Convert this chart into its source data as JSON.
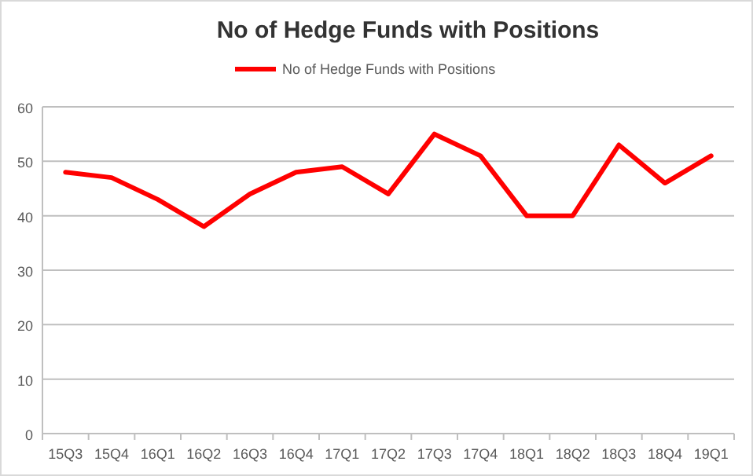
{
  "chart_data": {
    "type": "line",
    "title": "No of Hedge Funds with Positions",
    "categories": [
      "15Q3",
      "15Q4",
      "16Q1",
      "16Q2",
      "16Q3",
      "16Q4",
      "17Q1",
      "17Q2",
      "17Q3",
      "17Q4",
      "18Q1",
      "18Q2",
      "18Q3",
      "18Q4",
      "19Q1"
    ],
    "series": [
      {
        "name": "No of Hedge Funds with Positions",
        "color": "#ff0000",
        "values": [
          48,
          47,
          43,
          38,
          44,
          48,
          49,
          44,
          55,
          51,
          40,
          40,
          53,
          46,
          51
        ]
      }
    ],
    "ylim": [
      0,
      60
    ],
    "yticks": [
      0,
      10,
      20,
      30,
      40,
      50,
      60
    ],
    "grid": "y",
    "legend": "top",
    "marker": "none",
    "line_style": "solid"
  }
}
